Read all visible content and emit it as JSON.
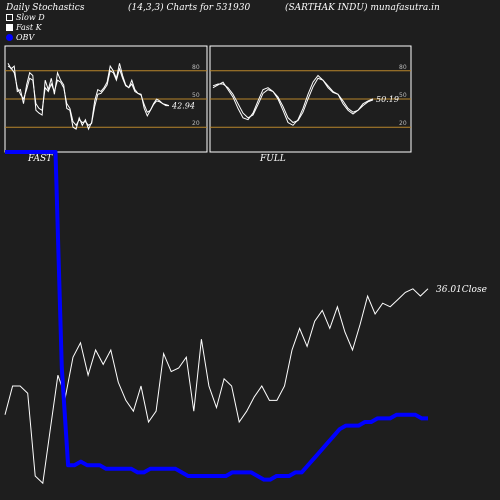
{
  "header": {
    "title": "Daily Stochastics",
    "params": "(14,3,3) Charts for 531930",
    "company": "(SARTHAK INDU) munafasutra.in"
  },
  "legend": [
    {
      "label": "Slow  D",
      "swatch": "#1e1e1e"
    },
    {
      "label": "Fast  K",
      "swatch": "#ffffff"
    },
    {
      "label": "OBV",
      "swatch": "#0000ff"
    }
  ],
  "colors": {
    "background": "#1e1e1e",
    "panel_border": "#ffffff",
    "ref_lines": "#b8862b",
    "stoch_lines": "#ffffff",
    "obv_line": "#0000ff",
    "close_line": "#ffffff"
  },
  "chart_data": [
    {
      "type": "line",
      "title": "FAST",
      "ylim": [
        0,
        100
      ],
      "ticks": [
        20,
        50,
        80
      ],
      "last_value_label": "42.94",
      "series": [
        {
          "values": [
            88,
            82,
            85,
            58,
            60,
            45,
            65,
            78,
            75,
            38,
            35,
            33,
            70,
            60,
            72,
            55,
            78,
            70,
            65,
            40,
            38,
            20,
            18,
            30,
            22,
            28,
            18,
            25,
            48,
            60,
            58,
            62,
            68,
            85,
            80,
            72,
            88,
            75,
            65,
            62,
            70,
            60,
            56,
            55,
            40,
            32,
            38,
            45,
            50,
            48,
            45,
            43,
            42.94
          ]
        },
        {
          "values": [
            85,
            83,
            78,
            62,
            55,
            50,
            60,
            72,
            70,
            45,
            40,
            38,
            62,
            58,
            66,
            58,
            70,
            68,
            62,
            45,
            40,
            26,
            22,
            28,
            25,
            26,
            22,
            24,
            42,
            55,
            56,
            60,
            65,
            80,
            78,
            70,
            82,
            72,
            64,
            62,
            66,
            58,
            56,
            54,
            44,
            36,
            38,
            44,
            48,
            47,
            45,
            44,
            43
          ]
        }
      ]
    },
    {
      "type": "line",
      "title": "FULL",
      "ylim": [
        0,
        100
      ],
      "ticks": [
        20,
        50,
        80
      ],
      "last_value_label": "50.19",
      "series": [
        {
          "values": [
            62,
            65,
            68,
            60,
            52,
            40,
            30,
            28,
            35,
            48,
            60,
            62,
            58,
            50,
            38,
            25,
            22,
            28,
            40,
            55,
            68,
            75,
            70,
            62,
            57,
            55,
            45,
            38,
            34,
            38,
            45,
            48,
            50.19
          ]
        },
        {
          "values": [
            64,
            66,
            66,
            62,
            55,
            45,
            35,
            30,
            33,
            44,
            56,
            60,
            58,
            52,
            42,
            30,
            25,
            27,
            36,
            50,
            63,
            72,
            70,
            64,
            58,
            55,
            48,
            40,
            36,
            38,
            43,
            47,
            49
          ]
        }
      ]
    },
    {
      "type": "line",
      "series": [
        {
          "name": "OBV",
          "values": [
            95,
            95,
            95,
            95,
            95,
            95,
            95,
            95,
            95,
            35,
            8,
            8,
            9,
            8,
            8,
            8,
            7,
            7,
            7,
            7,
            7,
            6,
            6,
            7,
            7,
            7,
            7,
            7,
            6,
            5,
            5,
            5,
            5,
            5,
            5,
            5,
            6,
            6,
            6,
            6,
            5,
            4,
            4,
            5,
            5,
            5,
            6,
            6,
            8,
            10,
            12,
            14,
            16,
            18,
            19,
            19,
            19,
            20,
            20,
            21,
            21,
            21,
            22,
            22,
            22,
            22,
            21,
            21
          ]
        },
        {
          "name": "Close",
          "values": [
            22,
            30,
            30,
            28,
            5,
            3,
            18,
            33,
            27,
            38,
            42,
            33,
            40,
            36,
            40,
            31,
            26,
            23,
            30,
            20,
            23,
            39,
            34,
            35,
            38,
            23,
            43,
            30,
            24,
            32,
            30,
            20,
            23,
            27,
            30,
            26,
            26,
            30,
            40,
            46,
            41,
            48,
            51,
            46,
            52,
            45,
            40,
            47,
            55,
            50,
            53,
            52,
            54,
            56,
            57,
            55,
            57
          ]
        }
      ],
      "close_label": "36.01Close"
    }
  ]
}
